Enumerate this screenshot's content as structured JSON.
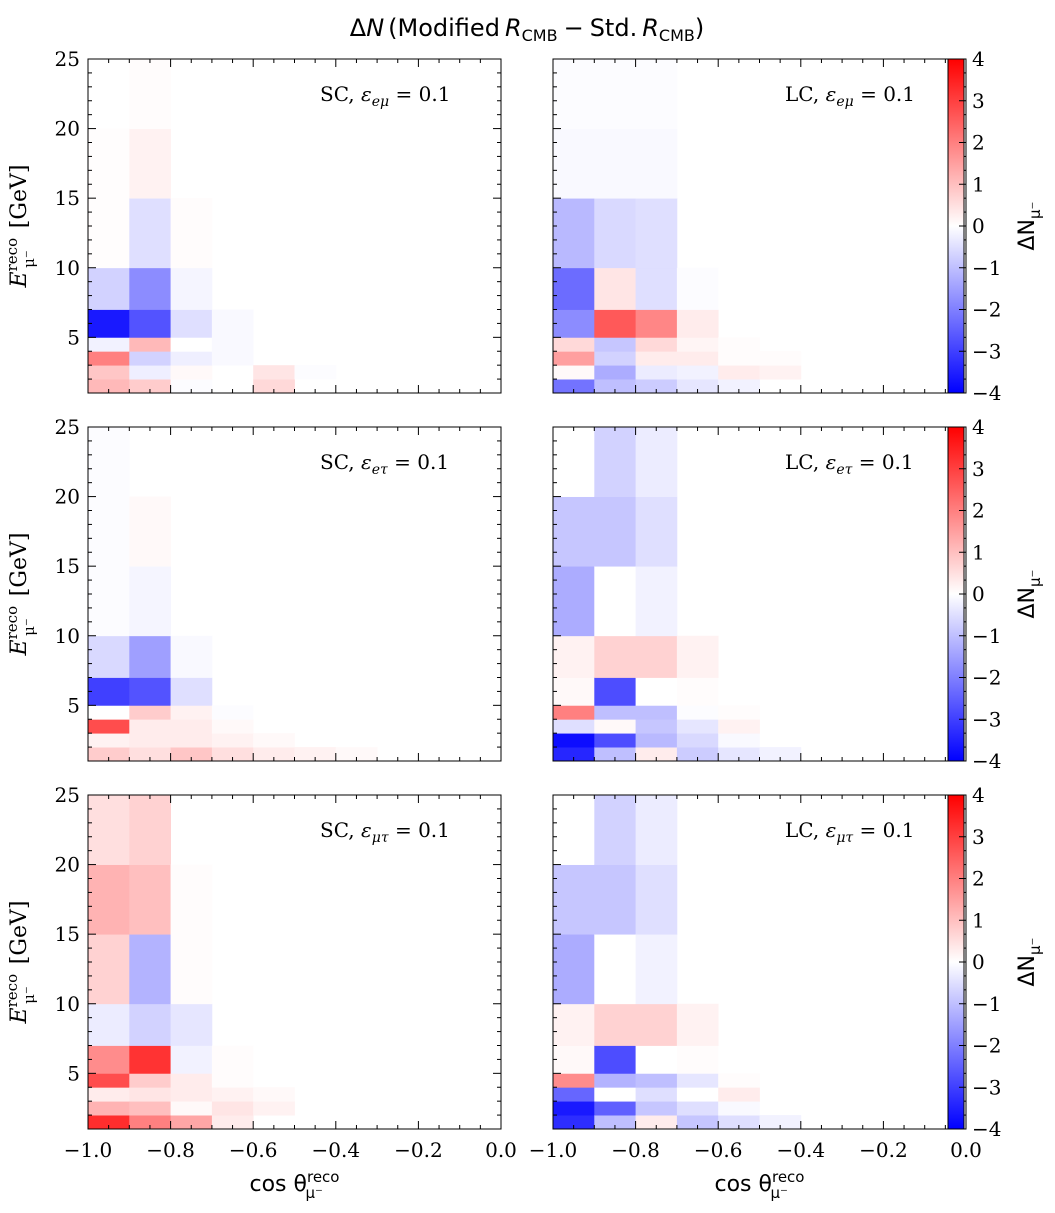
{
  "chart_data": {
    "type": "heatmap",
    "title": "ΔN (Modified R_CMB − Std. R_CMB)",
    "title_parts": {
      "delta": "Δ",
      "N": "N",
      "lparen": "(",
      "modified": "Modified",
      "R1": "R",
      "sub1": "CMB",
      "minus": "−",
      "std": "Std.",
      "R2": "R",
      "sub2": "CMB",
      "rparen": ")"
    },
    "xlabel": {
      "main": "cos θ",
      "sup": "reco",
      "sub": "μ⁻"
    },
    "ylabel": {
      "main": "E",
      "sup": "reco",
      "sub": "μ⁻",
      "unit": "[GeV]"
    },
    "colorbar_label": {
      "main": "ΔN",
      "sub": "μ⁻"
    },
    "xlim": [
      -1.0,
      0.0
    ],
    "ylim": [
      1,
      25
    ],
    "xticks": [
      -1.0,
      -0.8,
      -0.6,
      -0.4,
      -0.2,
      0.0
    ],
    "xtick_labels": [
      "−1.0",
      "−0.8",
      "−0.6",
      "−0.4",
      "−0.2",
      "0.0"
    ],
    "yticks": [
      5,
      10,
      15,
      20,
      25
    ],
    "ytick_labels": [
      "5",
      "10",
      "15",
      "20",
      "25"
    ],
    "colorbar_range": [
      -4,
      4
    ],
    "colorbar_ticks": [
      4,
      3,
      2,
      1,
      0,
      -1,
      -2,
      -3,
      -4
    ],
    "colorbar_tick_labels": [
      "4",
      "3",
      "2",
      "1",
      "0",
      "−1",
      "−2",
      "−3",
      "−4"
    ],
    "colormap": "bwr",
    "x_bin_edges": [
      -1.0,
      -0.9,
      -0.8,
      -0.7,
      -0.6,
      -0.5,
      -0.4,
      -0.3,
      -0.2,
      -0.1,
      0.0
    ],
    "y_bin_edges": [
      1,
      2,
      3,
      4,
      5,
      7,
      10,
      15,
      20,
      25
    ],
    "panels": [
      {
        "label": "SC, ε_eμ = 0.1",
        "label_prefix": "SC,",
        "eps_sub": "eμ",
        "eq": "= 0.1",
        "cells": [
          [
            1,
            1,
            1.1
          ],
          [
            1,
            2,
            0.9
          ],
          [
            1,
            3,
            2.0
          ],
          [
            1,
            4,
            -0.2
          ],
          [
            1,
            5,
            -3.6
          ],
          [
            1,
            6,
            -0.7
          ],
          [
            1,
            7,
            0.03
          ],
          [
            1,
            8,
            0.03
          ],
          [
            2,
            1,
            0.8
          ],
          [
            2,
            2,
            -0.25
          ],
          [
            2,
            3,
            -0.7
          ],
          [
            2,
            4,
            1.1
          ],
          [
            2,
            5,
            -2.7
          ],
          [
            2,
            6,
            -1.8
          ],
          [
            2,
            7,
            -0.5
          ],
          [
            2,
            8,
            0.2
          ],
          [
            2,
            9,
            0.05
          ],
          [
            3,
            1,
            -0.05
          ],
          [
            3,
            2,
            0.1
          ],
          [
            3,
            3,
            -0.25
          ],
          [
            3,
            4,
            0.0
          ],
          [
            3,
            5,
            -0.5
          ],
          [
            3,
            6,
            -0.15
          ],
          [
            3,
            7,
            0.05
          ],
          [
            4,
            3,
            -0.1
          ],
          [
            4,
            4,
            -0.1
          ],
          [
            4,
            5,
            -0.1
          ],
          [
            5,
            1,
            0.6
          ],
          [
            5,
            2,
            0.4
          ],
          [
            6,
            2,
            -0.05
          ]
        ]
      },
      {
        "label": "LC, ε_eμ = 0.1",
        "label_prefix": "LC,",
        "eps_sub": "eμ",
        "eq": "= 0.1",
        "cells": [
          [
            1,
            1,
            -2.2
          ],
          [
            1,
            2,
            0.1
          ],
          [
            1,
            3,
            1.5
          ],
          [
            1,
            4,
            0.6
          ],
          [
            1,
            5,
            -1.8
          ],
          [
            1,
            6,
            -2.3
          ],
          [
            1,
            7,
            -1.1
          ],
          [
            1,
            8,
            -0.1
          ],
          [
            1,
            9,
            -0.05
          ],
          [
            2,
            1,
            -1.0
          ],
          [
            2,
            2,
            -1.3
          ],
          [
            2,
            3,
            -0.7
          ],
          [
            2,
            4,
            -0.9
          ],
          [
            2,
            5,
            2.6
          ],
          [
            2,
            6,
            0.4
          ],
          [
            2,
            7,
            -0.6
          ],
          [
            2,
            8,
            -0.1
          ],
          [
            2,
            9,
            -0.05
          ],
          [
            3,
            1,
            -0.8
          ],
          [
            3,
            2,
            -0.3
          ],
          [
            3,
            3,
            0.3
          ],
          [
            3,
            4,
            0.6
          ],
          [
            3,
            5,
            1.9
          ],
          [
            3,
            6,
            -0.5
          ],
          [
            3,
            7,
            -0.5
          ],
          [
            3,
            8,
            -0.1
          ],
          [
            3,
            9,
            -0.05
          ],
          [
            4,
            1,
            -0.4
          ],
          [
            4,
            2,
            -0.2
          ],
          [
            4,
            3,
            0.3
          ],
          [
            4,
            4,
            0.15
          ],
          [
            4,
            5,
            0.3
          ],
          [
            4,
            6,
            -0.05
          ],
          [
            5,
            1,
            -0.2
          ],
          [
            5,
            2,
            0.3
          ],
          [
            5,
            3,
            0.05
          ],
          [
            5,
            4,
            0.05
          ],
          [
            6,
            2,
            0.2
          ],
          [
            6,
            3,
            0.05
          ]
        ]
      },
      {
        "label": "SC, ε_eτ = 0.1",
        "label_prefix": "SC,",
        "eps_sub": "eτ",
        "eq": "= 0.1",
        "cells": [
          [
            1,
            1,
            0.8
          ],
          [
            1,
            2,
            0.2
          ],
          [
            1,
            3,
            2.8
          ],
          [
            1,
            4,
            0.0
          ],
          [
            1,
            5,
            -3.0
          ],
          [
            1,
            6,
            -0.6
          ],
          [
            1,
            7,
            -0.05
          ],
          [
            1,
            8,
            -0.05
          ],
          [
            1,
            9,
            -0.05
          ],
          [
            2,
            1,
            0.5
          ],
          [
            2,
            2,
            0.3
          ],
          [
            2,
            3,
            0.3
          ],
          [
            2,
            4,
            0.8
          ],
          [
            2,
            5,
            -2.7
          ],
          [
            2,
            6,
            -1.5
          ],
          [
            2,
            7,
            -0.15
          ],
          [
            2,
            8,
            0.1
          ],
          [
            3,
            1,
            0.9
          ],
          [
            3,
            2,
            0.3
          ],
          [
            3,
            3,
            0.3
          ],
          [
            3,
            4,
            0.2
          ],
          [
            3,
            5,
            -0.5
          ],
          [
            3,
            6,
            -0.1
          ],
          [
            4,
            1,
            0.5
          ],
          [
            4,
            2,
            0.2
          ],
          [
            4,
            3,
            0.1
          ],
          [
            4,
            4,
            -0.05
          ],
          [
            5,
            1,
            0.3
          ],
          [
            5,
            2,
            0.1
          ],
          [
            6,
            1,
            0.2
          ],
          [
            7,
            1,
            0.1
          ]
        ]
      },
      {
        "label": "LC, ε_eτ = 0.1",
        "label_prefix": "LC,",
        "eps_sub": "eτ",
        "eq": "= 0.1",
        "cells": [
          [
            1,
            1,
            -3.4
          ],
          [
            1,
            2,
            -3.8
          ],
          [
            1,
            3,
            -0.5
          ],
          [
            1,
            4,
            2.0
          ],
          [
            1,
            5,
            0.1
          ],
          [
            1,
            6,
            0.2
          ],
          [
            1,
            7,
            -1.3
          ],
          [
            1,
            8,
            -0.9
          ],
          [
            1,
            9,
            0.0
          ],
          [
            2,
            1,
            -1.0
          ],
          [
            2,
            2,
            -2.8
          ],
          [
            2,
            3,
            0.1
          ],
          [
            2,
            4,
            -1.0
          ],
          [
            2,
            5,
            -2.8
          ],
          [
            2,
            6,
            0.7
          ],
          [
            2,
            7,
            0.0
          ],
          [
            2,
            8,
            -0.9
          ],
          [
            2,
            9,
            -0.7
          ],
          [
            3,
            1,
            0.3
          ],
          [
            3,
            2,
            -1.1
          ],
          [
            3,
            3,
            -0.9
          ],
          [
            3,
            4,
            -1.0
          ],
          [
            3,
            5,
            0.0
          ],
          [
            3,
            6,
            0.7
          ],
          [
            3,
            7,
            -0.2
          ],
          [
            3,
            8,
            -0.5
          ],
          [
            3,
            9,
            -0.3
          ],
          [
            4,
            1,
            -0.8
          ],
          [
            4,
            2,
            -0.6
          ],
          [
            4,
            3,
            -0.4
          ],
          [
            4,
            4,
            -0.05
          ],
          [
            4,
            5,
            0.05
          ],
          [
            4,
            6,
            0.2
          ],
          [
            5,
            1,
            -0.4
          ],
          [
            5,
            2,
            -0.1
          ],
          [
            5,
            3,
            0.2
          ],
          [
            5,
            4,
            0.05
          ],
          [
            6,
            1,
            -0.2
          ]
        ]
      },
      {
        "label": "SC, ε_μτ = 0.1",
        "label_prefix": "SC,",
        "eps_sub": "μτ",
        "eq": "= 0.1",
        "cells": [
          [
            1,
            1,
            3.3
          ],
          [
            1,
            2,
            1.2
          ],
          [
            1,
            3,
            0.3
          ],
          [
            1,
            4,
            2.8
          ],
          [
            1,
            5,
            1.8
          ],
          [
            1,
            6,
            -0.3
          ],
          [
            1,
            7,
            0.7
          ],
          [
            1,
            8,
            1.2
          ],
          [
            1,
            9,
            0.5
          ],
          [
            2,
            1,
            2.0
          ],
          [
            2,
            2,
            1.0
          ],
          [
            2,
            3,
            0.4
          ],
          [
            2,
            4,
            0.8
          ],
          [
            2,
            5,
            3.2
          ],
          [
            2,
            6,
            -0.7
          ],
          [
            2,
            7,
            -1.2
          ],
          [
            2,
            8,
            1.0
          ],
          [
            2,
            9,
            0.7
          ],
          [
            3,
            1,
            1.4
          ],
          [
            3,
            2,
            0.1
          ],
          [
            3,
            3,
            0.3
          ],
          [
            3,
            4,
            0.3
          ],
          [
            3,
            5,
            -0.2
          ],
          [
            3,
            6,
            -0.4
          ],
          [
            3,
            7,
            0.05
          ],
          [
            3,
            8,
            0.05
          ],
          [
            4,
            1,
            0.3
          ],
          [
            4,
            2,
            0.4
          ],
          [
            4,
            3,
            0.2
          ],
          [
            4,
            4,
            0.05
          ],
          [
            4,
            5,
            0.05
          ],
          [
            5,
            2,
            0.2
          ],
          [
            5,
            3,
            0.1
          ]
        ]
      },
      {
        "label": "LC, ε_μτ = 0.1",
        "label_prefix": "LC,",
        "eps_sub": "μτ",
        "eq": "= 0.1",
        "cells": [
          [
            1,
            1,
            -3.3
          ],
          [
            1,
            2,
            -3.6
          ],
          [
            1,
            3,
            -2.4
          ],
          [
            1,
            4,
            1.8
          ],
          [
            1,
            5,
            0.1
          ],
          [
            1,
            6,
            0.2
          ],
          [
            1,
            7,
            -1.3
          ],
          [
            1,
            8,
            -0.9
          ],
          [
            1,
            9,
            0.0
          ],
          [
            2,
            1,
            -1.0
          ],
          [
            2,
            2,
            -2.5
          ],
          [
            2,
            3,
            0.0
          ],
          [
            2,
            4,
            -1.2
          ],
          [
            2,
            5,
            -2.8
          ],
          [
            2,
            6,
            0.7
          ],
          [
            2,
            7,
            0.0
          ],
          [
            2,
            8,
            -0.9
          ],
          [
            2,
            9,
            -0.7
          ],
          [
            3,
            1,
            0.3
          ],
          [
            3,
            2,
            -0.9
          ],
          [
            3,
            3,
            -0.5
          ],
          [
            3,
            4,
            -1.0
          ],
          [
            3,
            5,
            0.0
          ],
          [
            3,
            6,
            0.7
          ],
          [
            3,
            7,
            -0.2
          ],
          [
            3,
            8,
            -0.5
          ],
          [
            3,
            9,
            -0.3
          ],
          [
            4,
            1,
            -0.9
          ],
          [
            4,
            2,
            -0.5
          ],
          [
            4,
            3,
            0.0
          ],
          [
            4,
            4,
            -0.4
          ],
          [
            4,
            5,
            0.05
          ],
          [
            4,
            6,
            0.2
          ],
          [
            5,
            1,
            -0.5
          ],
          [
            5,
            2,
            -0.1
          ],
          [
            5,
            3,
            0.3
          ],
          [
            5,
            4,
            0.05
          ],
          [
            6,
            1,
            -0.2
          ]
        ]
      }
    ]
  }
}
